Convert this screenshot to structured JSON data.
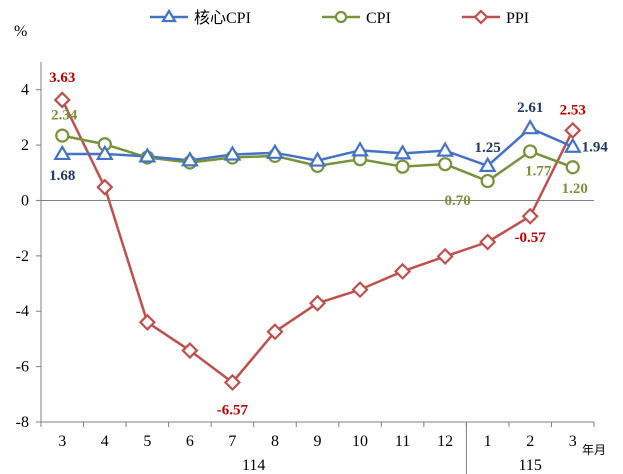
{
  "chart_data": {
    "type": "line",
    "ylabel": "%",
    "ylim": [
      -8,
      5
    ],
    "yticks": [
      "4",
      "2",
      "0",
      "-2",
      "-4",
      "-6",
      "-8"
    ],
    "categories": [
      "3",
      "4",
      "5",
      "6",
      "7",
      "8",
      "9",
      "10",
      "11",
      "12",
      "1",
      "2",
      "3"
    ],
    "x_unit": "年月",
    "year_labels": [
      {
        "label": "114",
        "from": 0,
        "to": 9
      },
      {
        "label": "115",
        "from": 10,
        "to": 12
      }
    ],
    "grid": false,
    "legend": "top",
    "series": [
      {
        "name": "核心CPI",
        "color": "#4472C4",
        "marker": "triangle",
        "values": [
          1.68,
          1.68,
          1.59,
          1.45,
          1.66,
          1.72,
          1.44,
          1.81,
          1.7,
          1.8,
          1.25,
          2.61,
          1.94
        ]
      },
      {
        "name": "CPI",
        "color": "#77933C",
        "marker": "circle",
        "values": [
          2.34,
          2.03,
          1.55,
          1.37,
          1.55,
          1.61,
          1.25,
          1.49,
          1.22,
          1.31,
          0.7,
          1.77,
          1.2
        ]
      },
      {
        "name": "PPI",
        "color": "#C0504D",
        "marker": "diamond",
        "values": [
          3.63,
          0.48,
          -4.4,
          -5.42,
          -6.57,
          -4.74,
          -3.71,
          -3.22,
          -2.56,
          -2.02,
          -1.5,
          -0.57,
          2.53
        ]
      }
    ],
    "data_labels": [
      {
        "series": 0,
        "index": 0,
        "text": "1.68",
        "color": "#1F3864"
      },
      {
        "series": 0,
        "index": 10,
        "text": "1.25",
        "color": "#1F3864"
      },
      {
        "series": 0,
        "index": 11,
        "text": "2.61",
        "color": "#1F3864"
      },
      {
        "series": 0,
        "index": 12,
        "text": "1.94",
        "color": "#1F3864"
      },
      {
        "series": 1,
        "index": 0,
        "text": "2.34",
        "color": "#77933C"
      },
      {
        "series": 1,
        "index": 10,
        "text": "0.70",
        "color": "#77933C"
      },
      {
        "series": 1,
        "index": 11,
        "text": "1.77",
        "color": "#77933C"
      },
      {
        "series": 1,
        "index": 12,
        "text": "1.20",
        "color": "#77933C"
      },
      {
        "series": 2,
        "index": 0,
        "text": "3.63",
        "color": "#C00000"
      },
      {
        "series": 2,
        "index": 4,
        "text": "-6.57",
        "color": "#C00000"
      },
      {
        "series": 2,
        "index": 11,
        "text": "-0.57",
        "color": "#C00000"
      },
      {
        "series": 2,
        "index": 12,
        "text": "2.53",
        "color": "#C00000"
      }
    ]
  }
}
